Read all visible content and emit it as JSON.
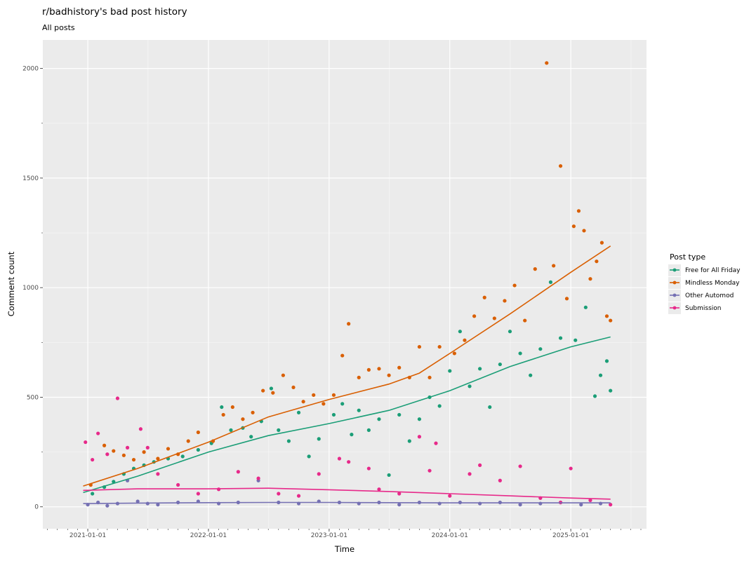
{
  "chart_data": {
    "type": "scatter",
    "title": "r/badhistory's bad post history",
    "subtitle": "All posts",
    "xlabel": "Time",
    "ylabel": "Comment count",
    "x_ticks": [
      "2021-01-01",
      "2022-01-01",
      "2023-01-01",
      "2024-01-01",
      "2025-01-01"
    ],
    "y_ticks": [
      0,
      500,
      1000,
      1500,
      2000
    ],
    "xlim": [
      "2020-08-18",
      "2025-08-18"
    ],
    "ylim": [
      -100,
      2130
    ],
    "grid": true,
    "legend": {
      "title": "Post type",
      "position": "right",
      "entries": [
        "Free for All Friday",
        "Mindless Monday",
        "Other Automod",
        "Submission"
      ]
    },
    "series": [
      {
        "name": "Free for All Friday",
        "color": "#1b9e77",
        "trend": [
          [
            "2020-12-18",
            65
          ],
          [
            "2021-06-01",
            140
          ],
          [
            "2022-01-01",
            250
          ],
          [
            "2022-07-01",
            325
          ],
          [
            "2023-01-01",
            380
          ],
          [
            "2023-07-01",
            440
          ],
          [
            "2024-01-01",
            530
          ],
          [
            "2024-07-01",
            640
          ],
          [
            "2025-01-01",
            730
          ],
          [
            "2025-05-01",
            775
          ]
        ],
        "points": [
          [
            "2021-01-15",
            60
          ],
          [
            "2021-02-20",
            90
          ],
          [
            "2021-03-20",
            115
          ],
          [
            "2021-04-20",
            150
          ],
          [
            "2021-05-20",
            175
          ],
          [
            "2021-06-20",
            190
          ],
          [
            "2021-07-20",
            205
          ],
          [
            "2021-09-01",
            220
          ],
          [
            "2021-10-15",
            230
          ],
          [
            "2021-12-01",
            260
          ],
          [
            "2022-01-10",
            290
          ],
          [
            "2022-02-10",
            455
          ],
          [
            "2022-03-10",
            350
          ],
          [
            "2022-04-15",
            360
          ],
          [
            "2022-05-10",
            320
          ],
          [
            "2022-06-10",
            390
          ],
          [
            "2022-07-10",
            540
          ],
          [
            "2022-08-01",
            350
          ],
          [
            "2022-09-01",
            300
          ],
          [
            "2022-10-01",
            430
          ],
          [
            "2022-11-01",
            230
          ],
          [
            "2022-12-01",
            310
          ],
          [
            "2023-01-15",
            420
          ],
          [
            "2023-02-10",
            470
          ],
          [
            "2023-03-10",
            330
          ],
          [
            "2023-04-01",
            440
          ],
          [
            "2023-05-01",
            350
          ],
          [
            "2023-06-01",
            400
          ],
          [
            "2023-07-01",
            145
          ],
          [
            "2023-08-01",
            420
          ],
          [
            "2023-09-01",
            300
          ],
          [
            "2023-10-01",
            400
          ],
          [
            "2023-11-01",
            500
          ],
          [
            "2023-12-01",
            460
          ],
          [
            "2024-01-01",
            620
          ],
          [
            "2024-02-01",
            800
          ],
          [
            "2024-03-01",
            550
          ],
          [
            "2024-04-01",
            630
          ],
          [
            "2024-05-01",
            455
          ],
          [
            "2024-06-01",
            650
          ],
          [
            "2024-07-01",
            800
          ],
          [
            "2024-08-01",
            700
          ],
          [
            "2024-09-01",
            600
          ],
          [
            "2024-10-01",
            720
          ],
          [
            "2024-11-01",
            1025
          ],
          [
            "2024-12-01",
            770
          ],
          [
            "2025-01-15",
            760
          ],
          [
            "2025-02-15",
            910
          ],
          [
            "2025-03-15",
            505
          ],
          [
            "2025-04-01",
            600
          ],
          [
            "2025-04-20",
            665
          ],
          [
            "2025-05-01",
            530
          ]
        ]
      },
      {
        "name": "Mindless Monday",
        "color": "#d95f02",
        "trend": [
          [
            "2020-12-18",
            95
          ],
          [
            "2021-06-01",
            175
          ],
          [
            "2022-01-01",
            295
          ],
          [
            "2022-07-01",
            410
          ],
          [
            "2023-01-01",
            490
          ],
          [
            "2023-07-01",
            560
          ],
          [
            "2023-10-01",
            610
          ],
          [
            "2024-01-01",
            700
          ],
          [
            "2024-07-01",
            880
          ],
          [
            "2025-01-01",
            1070
          ],
          [
            "2025-05-01",
            1190
          ]
        ],
        "points": [
          [
            "2021-01-10",
            100
          ],
          [
            "2021-02-20",
            280
          ],
          [
            "2021-03-20",
            255
          ],
          [
            "2021-04-20",
            235
          ],
          [
            "2021-05-20",
            215
          ],
          [
            "2021-06-20",
            250
          ],
          [
            "2021-08-01",
            220
          ],
          [
            "2021-09-01",
            265
          ],
          [
            "2021-10-01",
            240
          ],
          [
            "2021-11-01",
            300
          ],
          [
            "2021-12-01",
            340
          ],
          [
            "2022-01-15",
            300
          ],
          [
            "2022-02-15",
            420
          ],
          [
            "2022-03-15",
            455
          ],
          [
            "2022-04-15",
            400
          ],
          [
            "2022-05-15",
            430
          ],
          [
            "2022-06-15",
            530
          ],
          [
            "2022-07-15",
            520
          ],
          [
            "2022-08-15",
            600
          ],
          [
            "2022-09-15",
            545
          ],
          [
            "2022-10-15",
            480
          ],
          [
            "2022-11-15",
            510
          ],
          [
            "2022-12-15",
            470
          ],
          [
            "2023-01-15",
            510
          ],
          [
            "2023-02-10",
            690
          ],
          [
            "2023-03-01",
            835
          ],
          [
            "2023-04-01",
            590
          ],
          [
            "2023-05-01",
            625
          ],
          [
            "2023-06-01",
            630
          ],
          [
            "2023-07-01",
            600
          ],
          [
            "2023-08-01",
            635
          ],
          [
            "2023-09-01",
            590
          ],
          [
            "2023-10-01",
            730
          ],
          [
            "2023-11-01",
            590
          ],
          [
            "2023-12-01",
            730
          ],
          [
            "2024-01-15",
            700
          ],
          [
            "2024-02-15",
            760
          ],
          [
            "2024-03-15",
            870
          ],
          [
            "2024-04-15",
            955
          ],
          [
            "2024-05-15",
            860
          ],
          [
            "2024-06-15",
            940
          ],
          [
            "2024-07-15",
            1010
          ],
          [
            "2024-08-15",
            850
          ],
          [
            "2024-09-15",
            1085
          ],
          [
            "2024-10-20",
            2025
          ],
          [
            "2024-11-10",
            1100
          ],
          [
            "2024-12-01",
            1555
          ],
          [
            "2024-12-20",
            950
          ],
          [
            "2025-01-10",
            1280
          ],
          [
            "2025-01-25",
            1350
          ],
          [
            "2025-02-10",
            1260
          ],
          [
            "2025-03-01",
            1040
          ],
          [
            "2025-03-20",
            1120
          ],
          [
            "2025-04-05",
            1205
          ],
          [
            "2025-04-20",
            870
          ],
          [
            "2025-05-01",
            850
          ]
        ]
      },
      {
        "name": "Other Automod",
        "color": "#7570b3",
        "trend": [
          [
            "2020-12-18",
            15
          ],
          [
            "2021-06-01",
            17
          ],
          [
            "2022-01-01",
            19
          ],
          [
            "2022-07-01",
            20
          ],
          [
            "2023-01-01",
            20
          ],
          [
            "2023-07-01",
            19
          ],
          [
            "2024-01-01",
            18
          ],
          [
            "2024-07-01",
            18
          ],
          [
            "2025-01-01",
            18
          ],
          [
            "2025-05-01",
            18
          ]
        ],
        "points": [
          [
            "2021-01-01",
            10
          ],
          [
            "2021-02-01",
            20
          ],
          [
            "2021-03-01",
            5
          ],
          [
            "2021-04-01",
            15
          ],
          [
            "2021-05-01",
            120
          ],
          [
            "2021-06-01",
            25
          ],
          [
            "2021-07-01",
            15
          ],
          [
            "2021-08-01",
            10
          ],
          [
            "2021-10-01",
            20
          ],
          [
            "2021-12-01",
            25
          ],
          [
            "2022-02-01",
            15
          ],
          [
            "2022-04-01",
            20
          ],
          [
            "2022-06-01",
            120
          ],
          [
            "2022-08-01",
            20
          ],
          [
            "2022-10-01",
            15
          ],
          [
            "2022-12-01",
            25
          ],
          [
            "2023-02-01",
            20
          ],
          [
            "2023-04-01",
            15
          ],
          [
            "2023-06-01",
            20
          ],
          [
            "2023-08-01",
            10
          ],
          [
            "2023-10-01",
            20
          ],
          [
            "2023-12-01",
            15
          ],
          [
            "2024-02-01",
            20
          ],
          [
            "2024-04-01",
            15
          ],
          [
            "2024-06-01",
            20
          ],
          [
            "2024-08-01",
            10
          ],
          [
            "2024-10-01",
            15
          ],
          [
            "2024-12-01",
            20
          ],
          [
            "2025-02-01",
            10
          ],
          [
            "2025-04-01",
            15
          ]
        ]
      },
      {
        "name": "Submission",
        "color": "#e7298a",
        "trend": [
          [
            "2020-12-18",
            75
          ],
          [
            "2021-06-01",
            82
          ],
          [
            "2022-01-01",
            82
          ],
          [
            "2022-07-01",
            85
          ],
          [
            "2023-01-01",
            78
          ],
          [
            "2023-07-01",
            70
          ],
          [
            "2024-01-01",
            60
          ],
          [
            "2024-07-01",
            50
          ],
          [
            "2025-01-01",
            40
          ],
          [
            "2025-05-01",
            35
          ]
        ],
        "points": [
          [
            "2020-12-25",
            295
          ],
          [
            "2021-01-15",
            215
          ],
          [
            "2021-02-01",
            335
          ],
          [
            "2021-03-01",
            240
          ],
          [
            "2021-04-01",
            495
          ],
          [
            "2021-05-01",
            270
          ],
          [
            "2021-06-10",
            355
          ],
          [
            "2021-07-01",
            270
          ],
          [
            "2021-08-01",
            150
          ],
          [
            "2021-10-01",
            100
          ],
          [
            "2021-12-01",
            60
          ],
          [
            "2022-02-01",
            80
          ],
          [
            "2022-04-01",
            160
          ],
          [
            "2022-06-01",
            130
          ],
          [
            "2022-08-01",
            60
          ],
          [
            "2022-10-01",
            50
          ],
          [
            "2022-12-01",
            150
          ],
          [
            "2023-02-01",
            220
          ],
          [
            "2023-03-01",
            205
          ],
          [
            "2023-05-01",
            175
          ],
          [
            "2023-06-01",
            80
          ],
          [
            "2023-08-01",
            60
          ],
          [
            "2023-10-01",
            320
          ],
          [
            "2023-11-01",
            165
          ],
          [
            "2023-11-20",
            290
          ],
          [
            "2024-01-01",
            50
          ],
          [
            "2024-03-01",
            150
          ],
          [
            "2024-04-01",
            190
          ],
          [
            "2024-06-01",
            120
          ],
          [
            "2024-08-01",
            185
          ],
          [
            "2024-10-01",
            40
          ],
          [
            "2024-12-01",
            20
          ],
          [
            "2025-01-01",
            175
          ],
          [
            "2025-03-01",
            30
          ],
          [
            "2025-05-01",
            10
          ]
        ]
      }
    ]
  }
}
